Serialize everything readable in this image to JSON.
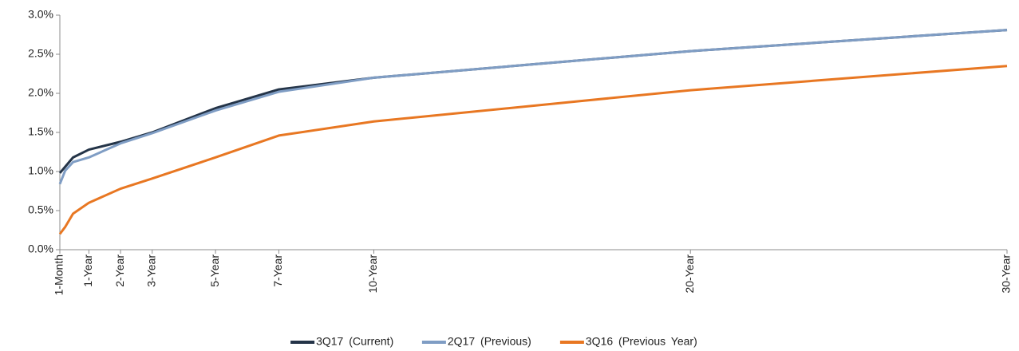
{
  "chart_data": {
    "type": "line",
    "x": [
      0.0833,
      0.25,
      0.5,
      1,
      2,
      3,
      5,
      7,
      10,
      20,
      30
    ],
    "series": [
      {
        "name": "3Q17 (Current)",
        "color": "#243448",
        "values": [
          0.98,
          1.06,
          1.18,
          1.28,
          1.38,
          1.5,
          1.81,
          2.05,
          2.2,
          2.54,
          2.81
        ]
      },
      {
        "name": "2Q17 (Previous)",
        "color": "#7f9dc4",
        "values": [
          0.84,
          1.01,
          1.12,
          1.18,
          1.36,
          1.49,
          1.78,
          2.02,
          2.2,
          2.54,
          2.81
        ]
      },
      {
        "name": "3Q16 (Previous Year)",
        "color": "#e87722",
        "values": [
          0.2,
          0.29,
          0.46,
          0.6,
          0.78,
          0.91,
          1.18,
          1.46,
          1.64,
          2.04,
          2.35
        ]
      }
    ],
    "xlim": [
      0.0833,
      30
    ],
    "xticks": [
      {
        "value": 0.0833,
        "label": "1-Month"
      },
      {
        "value": 1,
        "label": "1-Year"
      },
      {
        "value": 2,
        "label": "2-Year"
      },
      {
        "value": 3,
        "label": "3-Year"
      },
      {
        "value": 5,
        "label": "5-Year"
      },
      {
        "value": 7,
        "label": "7-Year"
      },
      {
        "value": 10,
        "label": "10-Year"
      },
      {
        "value": 20,
        "label": "20-Year"
      },
      {
        "value": 30,
        "label": "30-Year"
      }
    ],
    "ylim": [
      0,
      3
    ],
    "yticks": [
      {
        "value": 0,
        "label": "0.0%"
      },
      {
        "value": 0.5,
        "label": "0.5%"
      },
      {
        "value": 1,
        "label": "1.0%"
      },
      {
        "value": 1.5,
        "label": "1.5%"
      },
      {
        "value": 2,
        "label": "2.0%"
      },
      {
        "value": 2.5,
        "label": "2.5%"
      },
      {
        "value": 3,
        "label": "3.0%"
      }
    ],
    "legend": "bottom"
  }
}
